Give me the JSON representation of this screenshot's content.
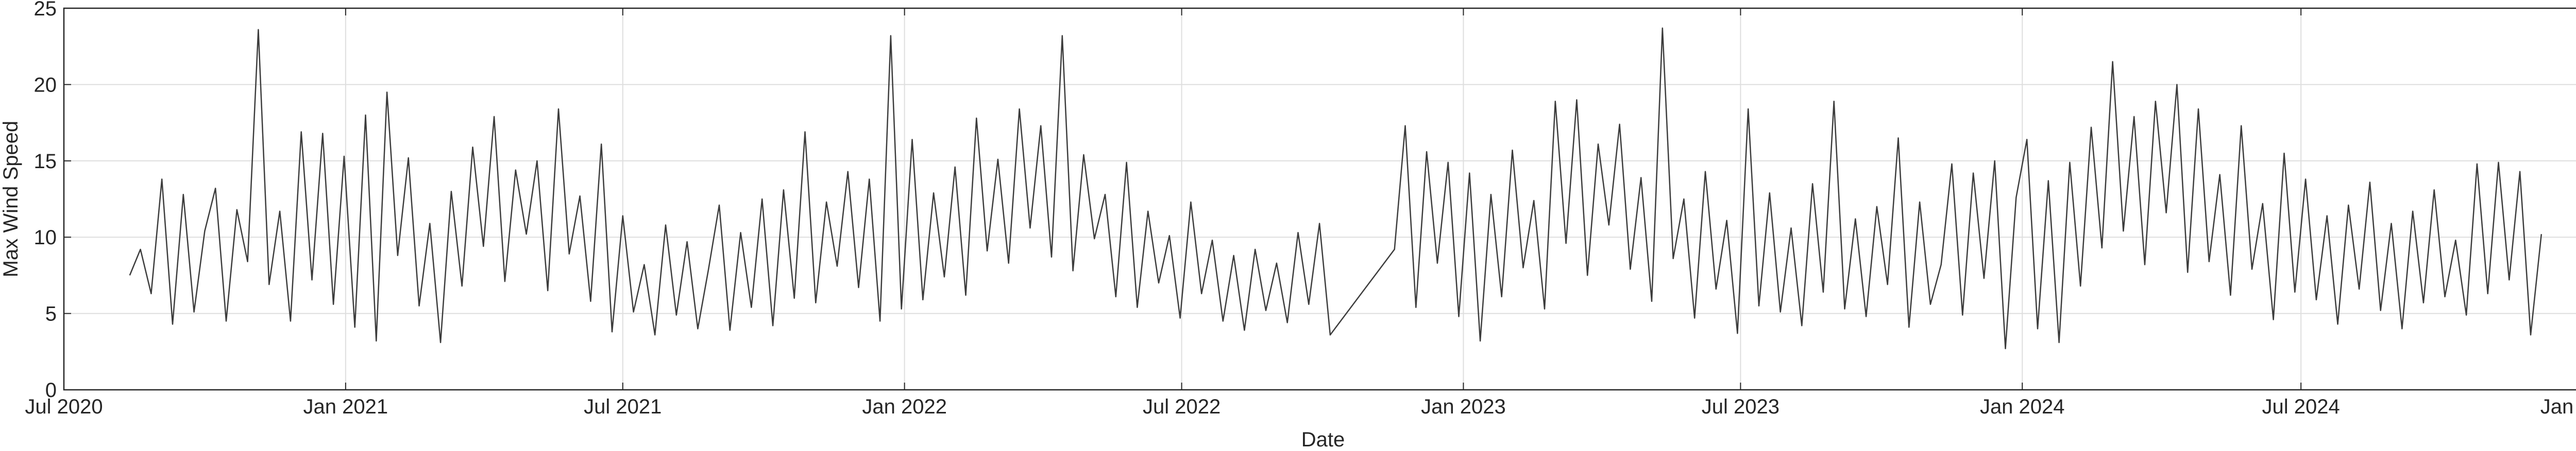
{
  "chart_data": {
    "type": "line",
    "x_label": "Date",
    "y_label": "Max Wind Speed",
    "xlim": [
      "2020-07-01",
      "2025-01-01"
    ],
    "xticks": [
      {
        "value": "2020-07-01",
        "label": "Jul 2020"
      },
      {
        "value": "2021-01-01",
        "label": "Jan 2021"
      },
      {
        "value": "2021-07-01",
        "label": "Jul 2021"
      },
      {
        "value": "2022-01-01",
        "label": "Jan 2022"
      },
      {
        "value": "2022-07-01",
        "label": "Jul 2022"
      },
      {
        "value": "2023-01-01",
        "label": "Jan 2023"
      },
      {
        "value": "2023-07-01",
        "label": "Jul 2023"
      },
      {
        "value": "2024-01-01",
        "label": "Jan 2024"
      },
      {
        "value": "2024-07-01",
        "label": "Jul 2024"
      },
      {
        "value": "2025-01-01",
        "label": "Jan 2025"
      }
    ],
    "ylim": [
      0,
      25
    ],
    "yticks": [
      0,
      5,
      10,
      15,
      20,
      25
    ],
    "grid": true,
    "color": "#3c3c3c",
    "x": [
      "2020-08-13",
      "2020-08-20",
      "2020-08-27",
      "2020-09-03",
      "2020-09-10",
      "2020-09-17",
      "2020-09-24",
      "2020-10-01",
      "2020-10-08",
      "2020-10-15",
      "2020-10-22",
      "2020-10-29",
      "2020-11-05",
      "2020-11-12",
      "2020-11-19",
      "2020-11-26",
      "2020-12-03",
      "2020-12-10",
      "2020-12-17",
      "2020-12-24",
      "2020-12-31",
      "2021-01-07",
      "2021-01-14",
      "2021-01-21",
      "2021-01-28",
      "2021-02-04",
      "2021-02-11",
      "2021-02-18",
      "2021-02-25",
      "2021-03-04",
      "2021-03-11",
      "2021-03-18",
      "2021-03-25",
      "2021-04-01",
      "2021-04-08",
      "2021-04-15",
      "2021-04-22",
      "2021-04-29",
      "2021-05-06",
      "2021-05-13",
      "2021-05-20",
      "2021-05-27",
      "2021-06-03",
      "2021-06-10",
      "2021-06-17",
      "2021-06-24",
      "2021-07-01",
      "2021-07-08",
      "2021-07-15",
      "2021-07-22",
      "2021-07-29",
      "2021-08-05",
      "2021-08-12",
      "2021-08-19",
      "2021-08-26",
      "2021-09-02",
      "2021-09-09",
      "2021-09-16",
      "2021-09-23",
      "2021-09-30",
      "2021-10-07",
      "2021-10-14",
      "2021-10-21",
      "2021-10-28",
      "2021-11-04",
      "2021-11-11",
      "2021-11-18",
      "2021-11-25",
      "2021-12-02",
      "2021-12-09",
      "2021-12-16",
      "2021-12-23",
      "2021-12-30",
      "2022-01-06",
      "2022-01-13",
      "2022-01-20",
      "2022-01-27",
      "2022-02-03",
      "2022-02-10",
      "2022-02-17",
      "2022-02-24",
      "2022-03-03",
      "2022-03-10",
      "2022-03-17",
      "2022-03-24",
      "2022-03-31",
      "2022-04-07",
      "2022-04-14",
      "2022-04-21",
      "2022-04-28",
      "2022-05-05",
      "2022-05-12",
      "2022-05-19",
      "2022-05-26",
      "2022-06-02",
      "2022-06-09",
      "2022-06-16",
      "2022-06-23",
      "2022-06-30",
      "2022-07-07",
      "2022-07-14",
      "2022-07-21",
      "2022-07-28",
      "2022-08-04",
      "2022-08-11",
      "2022-08-18",
      "2022-08-25",
      "2022-09-01",
      "2022-09-08",
      "2022-09-15",
      "2022-09-22",
      "2022-09-29",
      "2022-10-06",
      "2022-11-17",
      "2022-11-24",
      "2022-12-01",
      "2022-12-08",
      "2022-12-15",
      "2022-12-22",
      "2022-12-29",
      "2023-01-05",
      "2023-01-12",
      "2023-01-19",
      "2023-01-26",
      "2023-02-02",
      "2023-02-09",
      "2023-02-16",
      "2023-02-23",
      "2023-03-02",
      "2023-03-09",
      "2023-03-16",
      "2023-03-23",
      "2023-03-30",
      "2023-04-06",
      "2023-04-13",
      "2023-04-20",
      "2023-04-27",
      "2023-05-04",
      "2023-05-11",
      "2023-05-18",
      "2023-05-25",
      "2023-06-01",
      "2023-06-08",
      "2023-06-15",
      "2023-06-22",
      "2023-06-29",
      "2023-07-06",
      "2023-07-13",
      "2023-07-20",
      "2023-07-27",
      "2023-08-03",
      "2023-08-10",
      "2023-08-17",
      "2023-08-24",
      "2023-08-31",
      "2023-09-07",
      "2023-09-14",
      "2023-09-21",
      "2023-09-28",
      "2023-10-05",
      "2023-10-12",
      "2023-10-19",
      "2023-10-26",
      "2023-11-02",
      "2023-11-09",
      "2023-11-16",
      "2023-11-23",
      "2023-11-30",
      "2023-12-07",
      "2023-12-14",
      "2023-12-21",
      "2023-12-28",
      "2024-01-04",
      "2024-01-11",
      "2024-01-18",
      "2024-01-25",
      "2024-02-01",
      "2024-02-08",
      "2024-02-15",
      "2024-02-22",
      "2024-02-29",
      "2024-03-07",
      "2024-03-14",
      "2024-03-21",
      "2024-03-28",
      "2024-04-04",
      "2024-04-11",
      "2024-04-18",
      "2024-04-25",
      "2024-05-02",
      "2024-05-09",
      "2024-05-16",
      "2024-05-23",
      "2024-05-30",
      "2024-06-06",
      "2024-06-13",
      "2024-06-20",
      "2024-06-27",
      "2024-07-04",
      "2024-07-11",
      "2024-07-18",
      "2024-07-25",
      "2024-08-01",
      "2024-08-08",
      "2024-08-15",
      "2024-08-22",
      "2024-08-29",
      "2024-09-05",
      "2024-09-12",
      "2024-09-19",
      "2024-09-26",
      "2024-10-03",
      "2024-10-10",
      "2024-10-17",
      "2024-10-24",
      "2024-10-31",
      "2024-11-07",
      "2024-11-14",
      "2024-11-21",
      "2024-11-28",
      "2024-12-05"
    ],
    "values": [
      7.5,
      9.2,
      6.3,
      13.8,
      4.3,
      12.8,
      5.1,
      10.4,
      13.2,
      4.5,
      11.8,
      8.4,
      23.6,
      6.9,
      11.7,
      4.5,
      16.9,
      7.2,
      16.8,
      5.6,
      15.3,
      4.1,
      18.0,
      3.2,
      19.5,
      8.8,
      15.2,
      5.5,
      10.9,
      3.1,
      13.0,
      6.8,
      15.9,
      9.4,
      17.9,
      7.1,
      14.4,
      10.2,
      15.0,
      6.5,
      18.4,
      8.9,
      12.7,
      5.8,
      16.1,
      3.8,
      11.4,
      5.1,
      8.2,
      3.6,
      10.8,
      4.9,
      9.7,
      4.0,
      7.9,
      12.1,
      3.9,
      10.3,
      5.4,
      12.5,
      4.2,
      13.1,
      6.0,
      16.9,
      5.7,
      12.3,
      8.1,
      14.3,
      6.7,
      13.8,
      4.5,
      23.2,
      5.3,
      16.4,
      5.9,
      12.9,
      7.4,
      14.6,
      6.2,
      17.8,
      9.1,
      15.1,
      8.3,
      18.4,
      10.6,
      17.3,
      8.7,
      23.2,
      7.8,
      15.4,
      9.9,
      12.8,
      6.1,
      14.9,
      5.4,
      11.7,
      7.0,
      10.1,
      4.7,
      12.3,
      6.3,
      9.8,
      4.5,
      8.8,
      3.9,
      9.2,
      5.2,
      8.3,
      4.4,
      10.3,
      5.6,
      10.9,
      3.6,
      9.2,
      17.3,
      5.4,
      15.6,
      8.3,
      14.9,
      4.8,
      14.2,
      3.2,
      12.8,
      6.1,
      15.7,
      8.0,
      12.4,
      5.3,
      18.9,
      9.6,
      19.0,
      7.5,
      16.1,
      10.8,
      17.4,
      7.9,
      13.9,
      5.8,
      23.7,
      8.6,
      12.5,
      4.7,
      14.3,
      6.6,
      11.1,
      3.7,
      18.4,
      5.5,
      12.9,
      5.1,
      10.6,
      4.2,
      13.5,
      6.4,
      18.9,
      5.3,
      11.2,
      4.8,
      12.0,
      6.9,
      16.5,
      4.1,
      12.3,
      5.6,
      8.2,
      14.8,
      4.9,
      14.2,
      7.3,
      15.0,
      2.7,
      12.6,
      16.4,
      4.0,
      13.7,
      3.1,
      14.9,
      6.8,
      17.2,
      9.3,
      21.5,
      10.4,
      17.9,
      8.2,
      18.9,
      11.6,
      20.0,
      7.7,
      18.4,
      8.4,
      14.1,
      6.2,
      17.3,
      7.9,
      12.2,
      4.6,
      15.5,
      6.4,
      13.8,
      5.9,
      11.4,
      4.3,
      12.1,
      6.6,
      13.6,
      5.2,
      10.9,
      4.0,
      11.7,
      5.7,
      13.1,
      6.1,
      9.8,
      4.9,
      14.8,
      6.3,
      14.9,
      7.2,
      14.3,
      3.6,
      10.2
    ]
  }
}
